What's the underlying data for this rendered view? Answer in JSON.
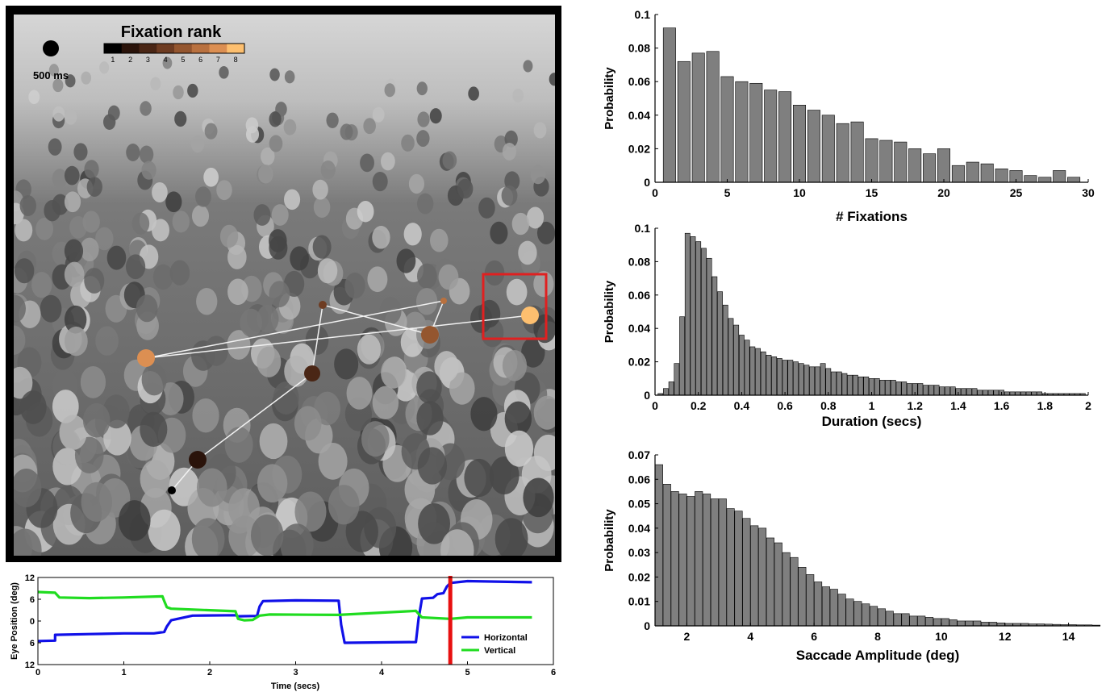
{
  "photo_panel": {
    "colorbar_title": "Fixation rank",
    "colorbar_ticks": [
      "1",
      "2",
      "3",
      "4",
      "5",
      "6",
      "7",
      "8"
    ],
    "colorbar_colors": [
      "#000000",
      "#2a130a",
      "#4a2615",
      "#6e3c22",
      "#94562f",
      "#b9713f",
      "#dc8f52",
      "#fdbf6f"
    ],
    "scale_label": "500 ms",
    "fixations": [
      {
        "rank": 1,
        "color": "#000000"
      },
      {
        "rank": 2,
        "color": "#2a130a"
      },
      {
        "rank": 3,
        "color": "#4a2615"
      },
      {
        "rank": 4,
        "color": "#6e3c22"
      },
      {
        "rank": 5,
        "color": "#94562f"
      },
      {
        "rank": 6,
        "color": "#b9713f"
      },
      {
        "rank": 7,
        "color": "#dc8f52"
      },
      {
        "rank": 8,
        "color": "#fdbf6f"
      }
    ],
    "highlight_color": "#e02020"
  },
  "chart_data": [
    {
      "type": "line",
      "title": "",
      "xlabel": "Time (secs)",
      "ylabel": "Eye Position (deg)",
      "xlim": [
        0,
        6
      ],
      "ylim": [
        -12,
        12
      ],
      "xticks": [
        "0",
        "1",
        "2",
        "3",
        "4",
        "5",
        "6"
      ],
      "yticks": [
        "12",
        "6",
        "0",
        "6",
        "12"
      ],
      "legend_position": "bottom-right",
      "marker": {
        "x": 4.8,
        "color": "#e81010"
      },
      "series": [
        {
          "name": "Horizontal",
          "color": "#1010e8",
          "x": [
            0.0,
            0.2,
            0.2,
            0.6,
            1.0,
            1.35,
            1.47,
            1.5,
            1.55,
            1.8,
            2.3,
            2.33,
            2.55,
            2.58,
            2.62,
            3.0,
            3.5,
            3.53,
            3.57,
            4.0,
            4.4,
            4.43,
            4.47,
            4.6,
            4.65,
            4.72,
            4.76,
            4.8,
            5.0,
            5.75
          ],
          "y": [
            -5.5,
            -5.4,
            -3.8,
            -3.6,
            -3.4,
            -3.4,
            -3.0,
            -1.5,
            0.2,
            1.5,
            1.6,
            1.3,
            1.4,
            4.0,
            5.5,
            5.7,
            5.6,
            -1.0,
            -6.0,
            -5.9,
            -5.8,
            0.5,
            6.2,
            6.4,
            7.4,
            7.7,
            9.5,
            10.5,
            11.0,
            10.7
          ]
        },
        {
          "name": "Vertical",
          "color": "#20dc20",
          "x": [
            0.0,
            0.2,
            0.25,
            0.6,
            1.0,
            1.45,
            1.47,
            1.5,
            1.55,
            2.3,
            2.33,
            2.4,
            2.5,
            2.58,
            2.7,
            3.5,
            4.4,
            4.43,
            4.47,
            4.8,
            5.0,
            5.75
          ],
          "y": [
            8.0,
            7.8,
            6.5,
            6.3,
            6.5,
            6.8,
            5.5,
            3.8,
            3.4,
            2.7,
            0.6,
            0.2,
            0.3,
            1.5,
            1.8,
            1.7,
            2.8,
            2.0,
            1.0,
            0.6,
            1.0,
            1.0
          ]
        }
      ]
    },
    {
      "type": "bar",
      "title": "",
      "xlabel": "# Fixations",
      "ylabel": "Probability",
      "xlim": [
        0,
        30
      ],
      "ylim": [
        0,
        0.1
      ],
      "xticks": [
        "0",
        "5",
        "10",
        "15",
        "20",
        "25",
        "30"
      ],
      "yticks": [
        "0",
        "0.02",
        "0.04",
        "0.06",
        "0.08",
        "0.1"
      ],
      "bar_color": "#7f7f7f",
      "x": [
        1,
        2,
        3,
        4,
        5,
        6,
        7,
        8,
        9,
        10,
        11,
        12,
        13,
        14,
        15,
        16,
        17,
        18,
        19,
        20,
        21,
        22,
        23,
        24,
        25,
        26,
        27,
        28,
        29
      ],
      "values": [
        0.092,
        0.072,
        0.077,
        0.078,
        0.063,
        0.06,
        0.059,
        0.055,
        0.054,
        0.046,
        0.043,
        0.04,
        0.035,
        0.036,
        0.026,
        0.025,
        0.024,
        0.02,
        0.017,
        0.02,
        0.01,
        0.012,
        0.011,
        0.008,
        0.007,
        0.004,
        0.003,
        0.007,
        0.003
      ]
    },
    {
      "type": "bar",
      "title": "",
      "xlabel": "Duration (secs)",
      "ylabel": "Probability",
      "xlim": [
        0,
        2
      ],
      "ylim": [
        0,
        0.1
      ],
      "xticks": [
        "0",
        "0.2",
        "0.4",
        "0.6",
        "0.8",
        "1",
        "1.2",
        "1.4",
        "1.6",
        "1.8",
        "2"
      ],
      "yticks": [
        "0",
        "0.02",
        "0.04",
        "0.06",
        "0.08",
        "0.1"
      ],
      "bar_color": "#7f7f7f",
      "x": [
        0.025,
        0.05,
        0.075,
        0.1,
        0.125,
        0.15,
        0.175,
        0.2,
        0.225,
        0.25,
        0.275,
        0.3,
        0.325,
        0.35,
        0.375,
        0.4,
        0.425,
        0.45,
        0.475,
        0.5,
        0.525,
        0.55,
        0.575,
        0.6,
        0.625,
        0.65,
        0.675,
        0.7,
        0.725,
        0.75,
        0.775,
        0.8,
        0.825,
        0.85,
        0.875,
        0.9,
        0.925,
        0.95,
        0.975,
        1.0,
        1.025,
        1.05,
        1.075,
        1.1,
        1.125,
        1.15,
        1.175,
        1.2,
        1.225,
        1.25,
        1.275,
        1.3,
        1.325,
        1.35,
        1.375,
        1.4,
        1.425,
        1.45,
        1.475,
        1.5,
        1.525,
        1.55,
        1.575,
        1.6,
        1.625,
        1.65,
        1.675,
        1.7,
        1.725,
        1.75,
        1.775,
        1.8,
        1.825,
        1.85,
        1.875,
        1.9,
        1.925,
        1.95,
        1.975
      ],
      "values": [
        0.001,
        0.004,
        0.008,
        0.019,
        0.047,
        0.097,
        0.095,
        0.092,
        0.088,
        0.082,
        0.071,
        0.062,
        0.054,
        0.046,
        0.042,
        0.036,
        0.033,
        0.029,
        0.028,
        0.026,
        0.024,
        0.023,
        0.022,
        0.021,
        0.021,
        0.02,
        0.019,
        0.018,
        0.017,
        0.017,
        0.019,
        0.016,
        0.014,
        0.014,
        0.013,
        0.012,
        0.012,
        0.011,
        0.011,
        0.01,
        0.01,
        0.009,
        0.009,
        0.009,
        0.008,
        0.008,
        0.007,
        0.007,
        0.007,
        0.006,
        0.006,
        0.006,
        0.005,
        0.005,
        0.005,
        0.004,
        0.004,
        0.004,
        0.004,
        0.003,
        0.003,
        0.003,
        0.003,
        0.003,
        0.002,
        0.002,
        0.002,
        0.002,
        0.002,
        0.002,
        0.002,
        0.001,
        0.001,
        0.001,
        0.001,
        0.001,
        0.001,
        0.001,
        0.001
      ]
    },
    {
      "type": "bar",
      "title": "",
      "xlabel": "Saccade Amplitude (deg)",
      "ylabel": "Probability",
      "xlim": [
        1,
        15
      ],
      "ylim": [
        0,
        0.07
      ],
      "xticks": [
        "2",
        "4",
        "6",
        "8",
        "10",
        "12",
        "14"
      ],
      "yticks": [
        "0",
        "0.01",
        "0.02",
        "0.03",
        "0.04",
        "0.05",
        "0.06",
        "0.07"
      ],
      "bar_color": "#7f7f7f",
      "x": [
        1.125,
        1.375,
        1.625,
        1.875,
        2.125,
        2.375,
        2.625,
        2.875,
        3.125,
        3.375,
        3.625,
        3.875,
        4.125,
        4.375,
        4.625,
        4.875,
        5.125,
        5.375,
        5.625,
        5.875,
        6.125,
        6.375,
        6.625,
        6.875,
        7.125,
        7.375,
        7.625,
        7.875,
        8.125,
        8.375,
        8.625,
        8.875,
        9.125,
        9.375,
        9.625,
        9.875,
        10.125,
        10.375,
        10.625,
        10.875,
        11.125,
        11.375,
        11.625,
        11.875,
        12.125,
        12.375,
        12.625,
        12.875,
        13.125,
        13.375,
        13.625,
        13.875,
        14.125,
        14.375,
        14.625,
        14.875
      ],
      "values": [
        0.066,
        0.058,
        0.055,
        0.054,
        0.053,
        0.055,
        0.054,
        0.052,
        0.052,
        0.048,
        0.047,
        0.044,
        0.041,
        0.04,
        0.036,
        0.034,
        0.03,
        0.028,
        0.024,
        0.021,
        0.018,
        0.016,
        0.015,
        0.013,
        0.011,
        0.01,
        0.009,
        0.008,
        0.007,
        0.006,
        0.005,
        0.005,
        0.004,
        0.004,
        0.0035,
        0.003,
        0.003,
        0.0025,
        0.002,
        0.002,
        0.002,
        0.0015,
        0.0015,
        0.0012,
        0.001,
        0.001,
        0.001,
        0.0008,
        0.0008,
        0.0007,
        0.0006,
        0.0005,
        0.0005,
        0.0004,
        0.0004,
        0.0003
      ]
    }
  ]
}
